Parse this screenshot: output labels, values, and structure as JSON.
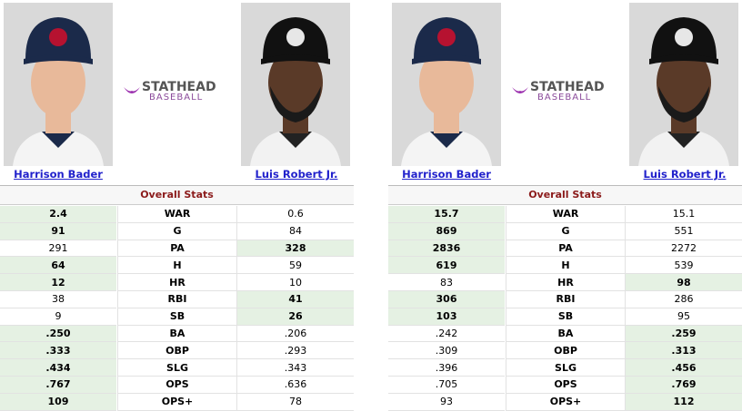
{
  "panels": [
    {
      "player_left": "Harrison Bader",
      "player_right": "Luis Robert Jr.",
      "logo": {
        "brand": "STATHEAD",
        "sub": "BASEBALL"
      },
      "section": "Overall Stats",
      "rows": [
        {
          "stat": "WAR",
          "left": "2.4",
          "right": "0.6",
          "highlight": "left"
        },
        {
          "stat": "G",
          "left": "91",
          "right": "84",
          "highlight": "left"
        },
        {
          "stat": "PA",
          "left": "291",
          "right": "328",
          "highlight": "right"
        },
        {
          "stat": "H",
          "left": "64",
          "right": "59",
          "highlight": "left"
        },
        {
          "stat": "HR",
          "left": "12",
          "right": "10",
          "highlight": "left"
        },
        {
          "stat": "RBI",
          "left": "38",
          "right": "41",
          "highlight": "right"
        },
        {
          "stat": "SB",
          "left": "9",
          "right": "26",
          "highlight": "right"
        },
        {
          "stat": "BA",
          "left": ".250",
          "right": ".206",
          "highlight": "left"
        },
        {
          "stat": "OBP",
          "left": ".333",
          "right": ".293",
          "highlight": "left"
        },
        {
          "stat": "SLG",
          "left": ".434",
          "right": ".343",
          "highlight": "left"
        },
        {
          "stat": "OPS",
          "left": ".767",
          "right": ".636",
          "highlight": "left"
        },
        {
          "stat": "OPS+",
          "left": "109",
          "right": "78",
          "highlight": "left"
        }
      ]
    },
    {
      "player_left": "Harrison Bader",
      "player_right": "Luis Robert Jr.",
      "logo": {
        "brand": "STATHEAD",
        "sub": "BASEBALL"
      },
      "section": "Overall Stats",
      "rows": [
        {
          "stat": "WAR",
          "left": "15.7",
          "right": "15.1",
          "highlight": "left"
        },
        {
          "stat": "G",
          "left": "869",
          "right": "551",
          "highlight": "left"
        },
        {
          "stat": "PA",
          "left": "2836",
          "right": "2272",
          "highlight": "left"
        },
        {
          "stat": "H",
          "left": "619",
          "right": "539",
          "highlight": "left"
        },
        {
          "stat": "HR",
          "left": "83",
          "right": "98",
          "highlight": "right"
        },
        {
          "stat": "RBI",
          "left": "306",
          "right": "286",
          "highlight": "left"
        },
        {
          "stat": "SB",
          "left": "103",
          "right": "95",
          "highlight": "left"
        },
        {
          "stat": "BA",
          "left": ".242",
          "right": ".259",
          "highlight": "right"
        },
        {
          "stat": "OBP",
          "left": ".309",
          "right": ".313",
          "highlight": "right"
        },
        {
          "stat": "SLG",
          "left": ".396",
          "right": ".456",
          "highlight": "right"
        },
        {
          "stat": "OPS",
          "left": ".705",
          "right": ".769",
          "highlight": "right"
        },
        {
          "stat": "OPS+",
          "left": "93",
          "right": "112",
          "highlight": "right"
        }
      ]
    }
  ]
}
